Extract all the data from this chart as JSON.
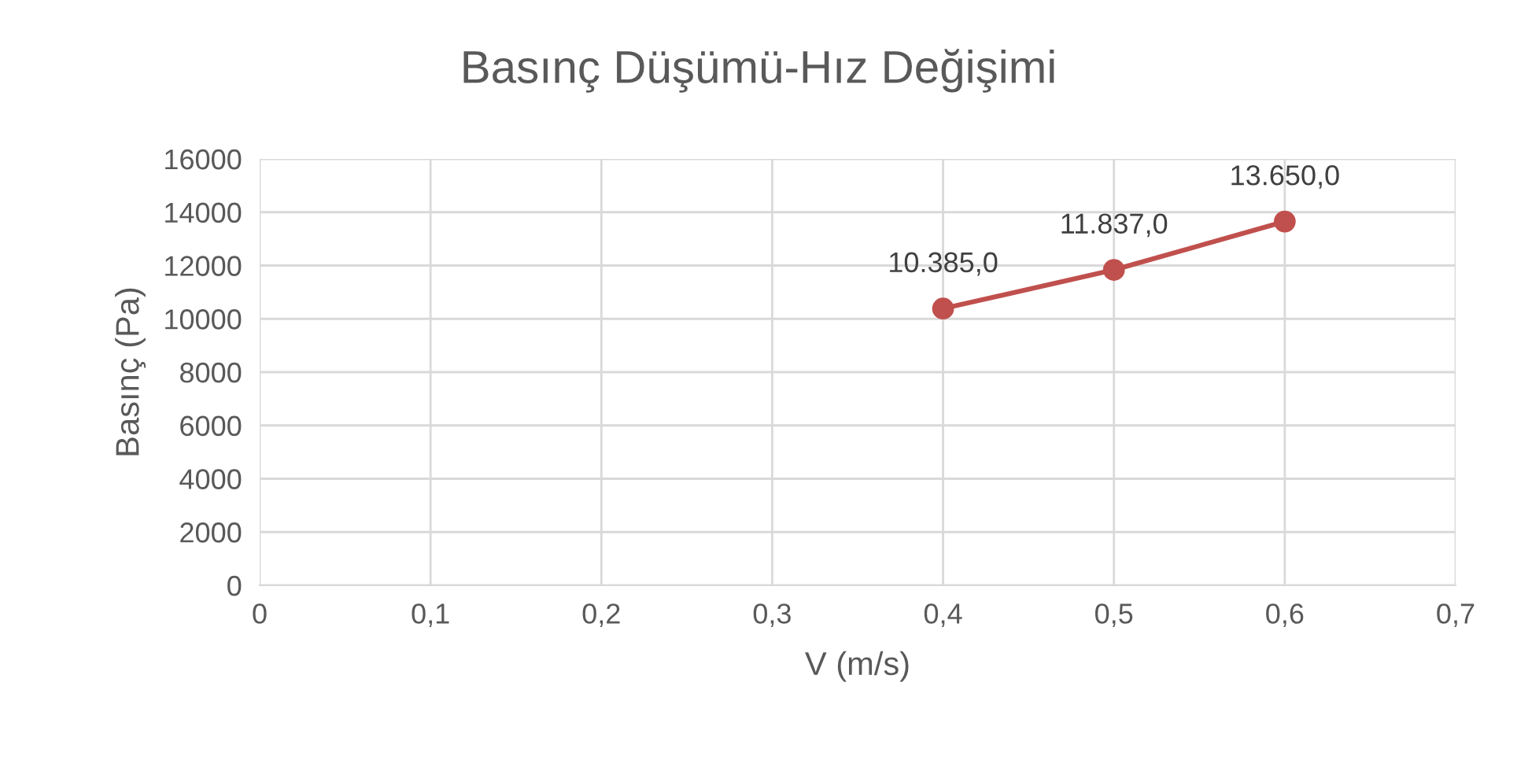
{
  "chart_data": {
    "type": "line",
    "title": "Basınç Düşümü-Hız Değişimi",
    "xlabel": "V (m/s)",
    "ylabel": "Basınç (Pa)",
    "x": [
      0.4,
      0.5,
      0.6
    ],
    "series": [
      {
        "color": "#c0504d",
        "values": [
          10385,
          11837,
          13650
        ],
        "value_labels": [
          "10.385,0",
          "11.837,0",
          "13.650,0"
        ]
      }
    ],
    "xlim": [
      0,
      0.7
    ],
    "xticks": [
      0,
      {
        "value": 0.1,
        "label": "0,1"
      },
      {
        "value": 0.2,
        "label": "0,2"
      },
      {
        "value": 0.3,
        "label": "0,3"
      },
      {
        "value": 0.4,
        "label": "0,4"
      },
      {
        "value": 0.5,
        "label": "0,5"
      },
      {
        "value": 0.6,
        "label": "0,6"
      },
      {
        "value": 0.7,
        "label": "0,7"
      }
    ],
    "ylim": [
      0,
      16000
    ],
    "yticks": [
      0,
      2000,
      4000,
      6000,
      8000,
      10000,
      12000,
      14000,
      16000
    ],
    "grid": true,
    "marker": "circle",
    "line_style": "solid",
    "legend": false
  }
}
